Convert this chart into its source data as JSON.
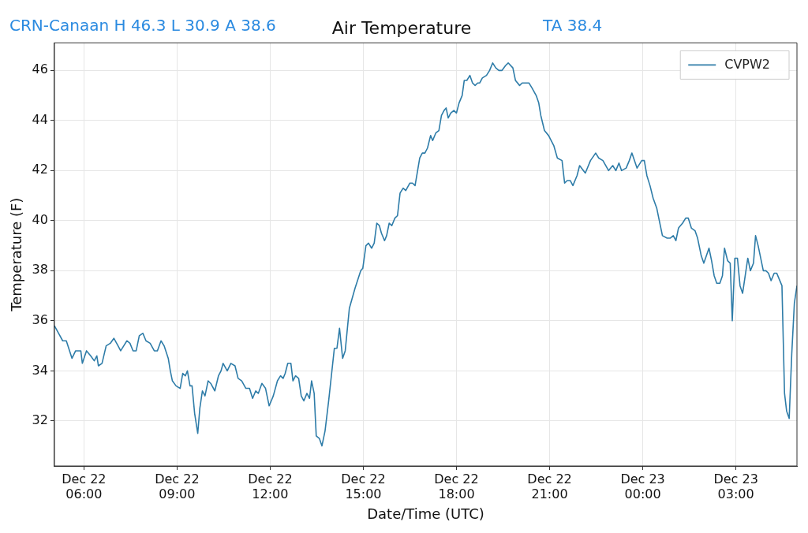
{
  "chart_data": {
    "type": "line",
    "title": "Air Temperature",
    "xlabel": "Date/Time (UTC)",
    "ylabel": "Temperature (F)",
    "annotations": [
      "CRN-Canaan H 46.3 L 30.9 A 38.6",
      "TA 38.4"
    ],
    "x": [
      "--12-22T05:03",
      "--12-22T05:11",
      "--12-22T05:19",
      "--12-22T05:26",
      "--12-22T05:37",
      "--12-22T05:44",
      "--12-22T05:54",
      "--12-22T05:57",
      "--12-22T06:05",
      "--12-22T06:13",
      "--12-22T06:20",
      "--12-22T06:25",
      "--12-22T06:28",
      "--12-22T06:35",
      "--12-22T06:43",
      "--12-22T06:51",
      "--12-22T06:58",
      "--12-22T07:06",
      "--12-22T07:11",
      "--12-22T07:17",
      "--12-22T07:23",
      "--12-22T07:29",
      "--12-22T07:35",
      "--12-22T07:41",
      "--12-22T07:47",
      "--12-22T07:54",
      "--12-22T08:00",
      "--12-22T08:08",
      "--12-22T08:16",
      "--12-22T08:22",
      "--12-22T08:29",
      "--12-22T08:35",
      "--12-22T08:43",
      "--12-22T08:47",
      "--12-22T08:51",
      "--12-22T08:58",
      "--12-22T09:06",
      "--12-22T09:11",
      "--12-22T09:16",
      "--12-22T09:20",
      "--12-22T09:25",
      "--12-22T09:29",
      "--12-22T09:34",
      "--12-22T09:40",
      "--12-22T09:44",
      "--12-22T09:49",
      "--12-22T09:54",
      "--12-22T10:00",
      "--12-22T10:05",
      "--12-22T10:13",
      "--12-22T10:20",
      "--12-22T10:25",
      "--12-22T10:29",
      "--12-22T10:37",
      "--12-22T10:44",
      "--12-22T10:52",
      "--12-22T10:58",
      "--12-22T11:05",
      "--12-22T11:13",
      "--12-22T11:20",
      "--12-22T11:26",
      "--12-22T11:32",
      "--12-22T11:37",
      "--12-22T11:44",
      "--12-22T11:51",
      "--12-22T11:58",
      "--12-22T12:06",
      "--12-22T12:14",
      "--12-22T12:20",
      "--12-22T12:25",
      "--12-22T12:29",
      "--12-22T12:34",
      "--12-22T12:40",
      "--12-22T12:44",
      "--12-22T12:49",
      "--12-22T12:55",
      "--12-22T13:00",
      "--12-22T13:05",
      "--12-22T13:11",
      "--12-22T13:16",
      "--12-22T13:20",
      "--12-22T13:25",
      "--12-22T13:29",
      "--12-22T13:35",
      "--12-22T13:40",
      "--12-22T13:46",
      "--12-22T13:53",
      "--12-22T14:04",
      "--12-22T14:09",
      "--12-22T14:14",
      "--12-22T14:20",
      "--12-22T14:25",
      "--12-22T14:33",
      "--12-22T14:44",
      "--12-22T14:55",
      "--12-22T14:59",
      "--12-22T15:05",
      "--12-22T15:10",
      "--12-22T15:16",
      "--12-22T15:21",
      "--12-22T15:26",
      "--12-22T15:31",
      "--12-22T15:35",
      "--12-22T15:41",
      "--12-22T15:45",
      "--12-22T15:50",
      "--12-22T15:55",
      "--12-22T16:01",
      "--12-22T16:06",
      "--12-22T16:11",
      "--12-22T16:17",
      "--12-22T16:22",
      "--12-22T16:30",
      "--12-22T16:35",
      "--12-22T16:40",
      "--12-22T16:49",
      "--12-22T16:54",
      "--12-22T16:59",
      "--12-22T17:04",
      "--12-22T17:10",
      "--12-22T17:14",
      "--12-22T17:20",
      "--12-22T17:26",
      "--12-22T17:31",
      "--12-22T17:36",
      "--12-22T17:40",
      "--12-22T17:44",
      "--12-22T17:49",
      "--12-22T17:55",
      "--12-22T18:00",
      "--12-22T18:05",
      "--12-22T18:11",
      "--12-22T18:15",
      "--12-22T18:20",
      "--12-22T18:26",
      "--12-22T18:31",
      "--12-22T18:36",
      "--12-22T18:41",
      "--12-22T18:45",
      "--12-22T18:50",
      "--12-22T18:58",
      "--12-22T19:04",
      "--12-22T19:10",
      "--12-22T19:16",
      "--12-22T19:22",
      "--12-22T19:28",
      "--12-22T19:35",
      "--12-22T19:40",
      "--12-22T19:49",
      "--12-22T19:54",
      "--12-22T20:02",
      "--12-22T20:07",
      "--12-22T20:13",
      "--12-22T20:20",
      "--12-22T20:26",
      "--12-22T20:34",
      "--12-22T20:39",
      "--12-22T20:43",
      "--12-22T20:50",
      "--12-22T20:58",
      "--12-22T21:08",
      "--12-22T21:15",
      "--12-22T21:24",
      "--12-22T21:29",
      "--12-22T21:34",
      "--12-22T21:40",
      "--12-22T21:45",
      "--12-22T21:53",
      "--12-22T21:58",
      "--12-22T22:09",
      "--12-22T22:19",
      "--12-22T22:29",
      "--12-22T22:35",
      "--12-22T22:43",
      "--12-22T22:54",
      "--12-22T23:02",
      "--12-22T23:08",
      "--12-22T23:14",
      "--12-22T23:19",
      "--12-22T23:28",
      "--12-22T23:34",
      "--12-22T23:39",
      "--12-22T23:49",
      "--12-22T23:58",
      "--12-23T00:03",
      "--12-23T00:08",
      "--12-23T00:14",
      "--12-23T00:20",
      "--12-23T00:27",
      "--12-23T00:32",
      "--12-23T00:38",
      "--12-23T00:47",
      "--12-23T00:53",
      "--12-23T00:59",
      "--12-23T01:04",
      "--12-23T01:09",
      "--12-23T01:17",
      "--12-23T01:23",
      "--12-23T01:28",
      "--12-23T01:34",
      "--12-23T01:41",
      "--12-23T01:46",
      "--12-23T01:53",
      "--12-23T01:58",
      "--12-23T02:08",
      "--12-23T02:13",
      "--12-23T02:18",
      "--12-23T02:23",
      "--12-23T02:29",
      "--12-23T02:34",
      "--12-23T02:38",
      "--12-23T02:44",
      "--12-23T02:49",
      "--12-23T02:53",
      "--12-23T02:58",
      "--12-23T03:03",
      "--12-23T03:08",
      "--12-23T03:13",
      "--12-23T03:23",
      "--12-23T03:28",
      "--12-23T03:34",
      "--12-23T03:38",
      "--12-23T03:43",
      "--12-23T03:53",
      "--12-23T03:58",
      "--12-23T04:03",
      "--12-23T04:08",
      "--12-23T04:14",
      "--12-23T04:19",
      "--12-23T04:23",
      "--12-23T04:29",
      "--12-23T04:34",
      "--12-23T04:38",
      "--12-23T04:43",
      "--12-23T04:48",
      "--12-23T04:53",
      "--12-23T04:58"
    ],
    "series": [
      {
        "name": "CVPW2",
        "color": "#2e7ca8",
        "values": [
          35.8,
          35.5,
          35.2,
          35.2,
          34.5,
          34.8,
          34.8,
          34.3,
          34.8,
          34.6,
          34.4,
          34.6,
          34.2,
          34.3,
          35.0,
          35.1,
          35.3,
          35.0,
          34.8,
          35.0,
          35.2,
          35.1,
          34.8,
          34.8,
          35.4,
          35.5,
          35.2,
          35.1,
          34.8,
          34.8,
          35.2,
          35.0,
          34.5,
          34.0,
          33.6,
          33.4,
          33.3,
          33.9,
          33.8,
          34.0,
          33.4,
          33.4,
          32.3,
          31.5,
          32.5,
          33.2,
          33.0,
          33.6,
          33.5,
          33.2,
          33.8,
          34.0,
          34.3,
          34.0,
          34.3,
          34.2,
          33.7,
          33.6,
          33.3,
          33.3,
          32.9,
          33.2,
          33.1,
          33.5,
          33.3,
          32.6,
          33.0,
          33.6,
          33.8,
          33.7,
          33.9,
          34.3,
          34.3,
          33.6,
          33.8,
          33.7,
          33.0,
          32.8,
          33.1,
          32.9,
          33.6,
          33.1,
          31.4,
          31.3,
          31.0,
          31.6,
          32.8,
          34.9,
          34.9,
          35.7,
          34.5,
          34.8,
          36.5,
          37.3,
          38.0,
          38.1,
          39.0,
          39.1,
          38.9,
          39.1,
          39.9,
          39.8,
          39.5,
          39.2,
          39.4,
          39.9,
          39.8,
          40.1,
          40.2,
          41.1,
          41.3,
          41.2,
          41.5,
          41.5,
          41.4,
          42.5,
          42.7,
          42.7,
          42.9,
          43.4,
          43.2,
          43.5,
          43.6,
          44.2,
          44.4,
          44.5,
          44.1,
          44.3,
          44.4,
          44.3,
          44.7,
          45.0,
          45.6,
          45.6,
          45.8,
          45.5,
          45.4,
          45.5,
          45.5,
          45.7,
          45.8,
          46.0,
          46.3,
          46.1,
          46.0,
          46.0,
          46.2,
          46.3,
          46.1,
          45.6,
          45.4,
          45.5,
          45.5,
          45.5,
          45.3,
          45.0,
          44.7,
          44.2,
          43.6,
          43.4,
          43.0,
          42.5,
          42.4,
          41.5,
          41.6,
          41.6,
          41.4,
          41.8,
          42.2,
          41.9,
          42.4,
          42.7,
          42.5,
          42.4,
          42.0,
          42.2,
          42.0,
          42.3,
          42.0,
          42.1,
          42.4,
          42.7,
          42.1,
          42.4,
          42.4,
          41.8,
          41.4,
          40.9,
          40.5,
          40.0,
          39.4,
          39.3,
          39.3,
          39.4,
          39.2,
          39.7,
          39.9,
          40.1,
          40.1,
          39.7,
          39.6,
          39.3,
          38.6,
          38.3,
          38.9,
          38.4,
          37.8,
          37.5,
          37.5,
          37.8,
          38.9,
          38.4,
          38.3,
          36.0,
          38.5,
          38.5,
          37.4,
          37.1,
          38.5,
          38.0,
          38.3,
          39.4,
          39.0,
          38.0,
          38.0,
          37.9,
          37.6,
          37.9,
          37.9,
          37.7,
          37.4,
          33.1,
          32.4,
          32.1,
          34.7,
          36.7,
          37.4
        ]
      }
    ],
    "xlim": [
      "--12-22T05:03",
      "--12-23T04:58"
    ],
    "xticks": [
      {
        "value": "--12-22T06:00",
        "label": "Dec 22\n06:00"
      },
      {
        "value": "--12-22T09:00",
        "label": "Dec 22\n09:00"
      },
      {
        "value": "--12-22T12:00",
        "label": "Dec 22\n12:00"
      },
      {
        "value": "--12-22T15:00",
        "label": "Dec 22\n15:00"
      },
      {
        "value": "--12-22T18:00",
        "label": "Dec 22\n18:00"
      },
      {
        "value": "--12-22T21:00",
        "label": "Dec 22\n21:00"
      },
      {
        "value": "--12-23T00:00",
        "label": "Dec 23\n00:00"
      },
      {
        "value": "--12-23T03:00",
        "label": "Dec 23\n03:00"
      }
    ],
    "ylim": [
      30.2,
      47.1
    ],
    "yticks": [
      32,
      34,
      36,
      38,
      40,
      42,
      44,
      46
    ],
    "grid": true,
    "legend": "top right",
    "marker": "none",
    "line_style": "solid"
  }
}
